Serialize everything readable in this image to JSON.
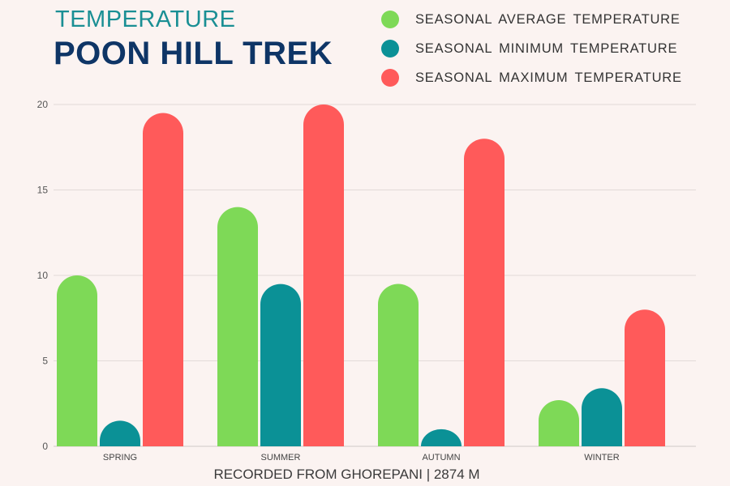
{
  "header": {
    "subtitle": "TEMPERATURE",
    "title": "POON HILL TREK"
  },
  "footer": {
    "note": "RECORDED FROM GHOREPANI | 2874 M"
  },
  "chart_data": {
    "type": "bar",
    "title": "POON HILL TREK",
    "subtitle": "TEMPERATURE",
    "categories": [
      "SPRING",
      "SUMMER",
      "AUTUMN",
      "WINTER"
    ],
    "series": [
      {
        "name": "SEASONAL AVERAGE TEMPERATURE",
        "color": "#7ed957",
        "values": [
          10,
          14,
          9.5,
          2.7
        ]
      },
      {
        "name": "SEASONAL MINIMUM TEMPERATURE",
        "color": "#0b9196",
        "values": [
          1.5,
          9.5,
          1,
          3.4
        ]
      },
      {
        "name": "SEASONAL MAXIMUM TEMPERATURE",
        "color": "#ff5a5a",
        "values": [
          19.5,
          20,
          18,
          8
        ]
      }
    ],
    "yticks": [
      0,
      5,
      10,
      15,
      20
    ],
    "ylim": [
      0,
      20
    ],
    "grid": true,
    "legend": "top-right"
  }
}
